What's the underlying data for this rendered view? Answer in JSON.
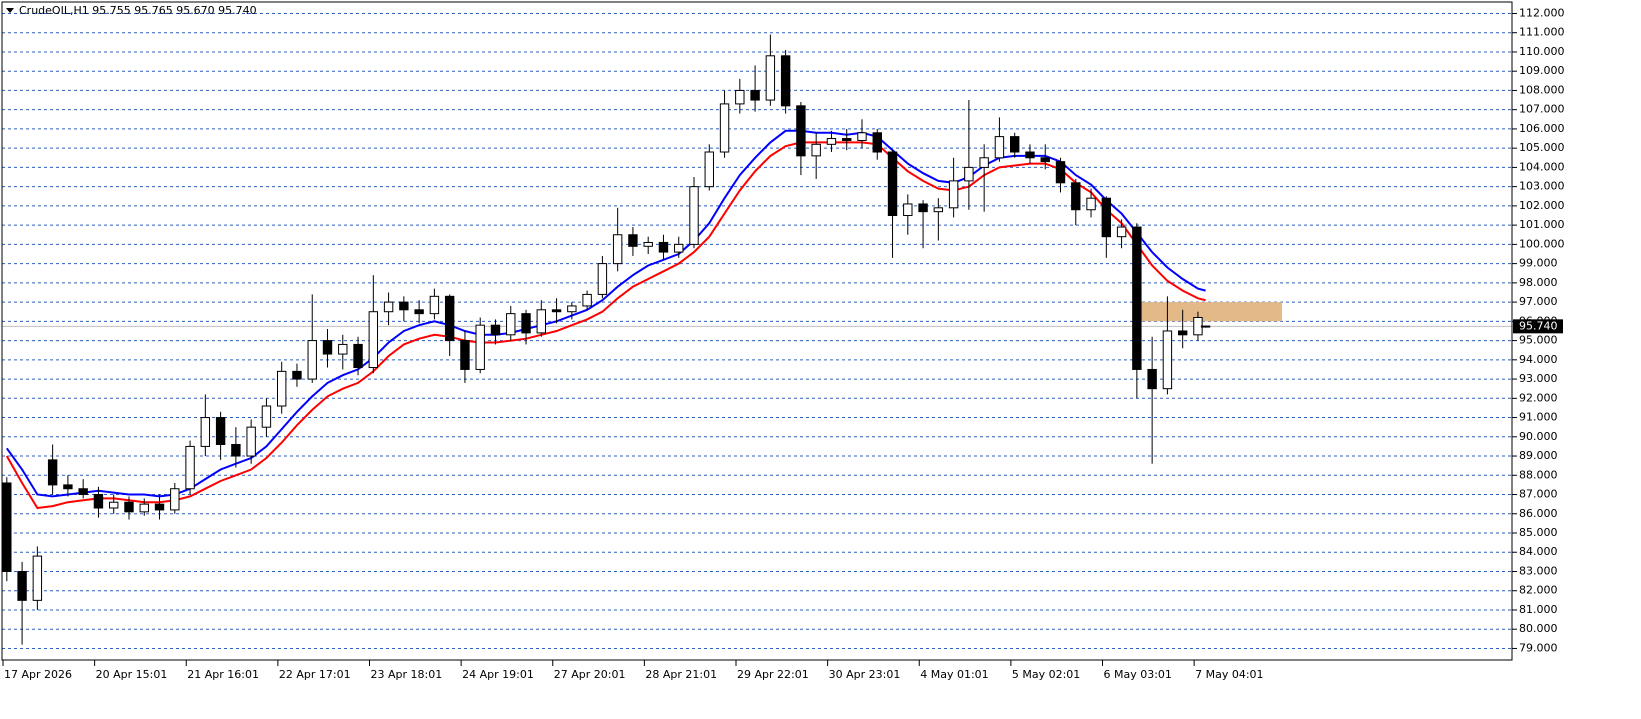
{
  "chart_data": {
    "type": "candlestick",
    "title": "CrudeOIL,H1  95.755 95.765 95.670 95.740",
    "xlim": [
      0,
      395
    ],
    "ylim": [
      78.4,
      112.7
    ],
    "xticks": [
      {
        "value": 0,
        "label": "17 Apr 2026"
      },
      {
        "value": 24,
        "label": "20 Apr 15:01"
      },
      {
        "value": 48,
        "label": "21 Apr 16:01"
      },
      {
        "value": 72,
        "label": "22 Apr 17:01"
      },
      {
        "value": 96,
        "label": "23 Apr 18:01"
      },
      {
        "value": 120,
        "label": "24 Apr 19:01"
      },
      {
        "value": 144,
        "label": "27 Apr 20:01"
      },
      {
        "value": 168,
        "label": "28 Apr 21:01"
      },
      {
        "value": 192,
        "label": "29 Apr 22:01"
      },
      {
        "value": 216,
        "label": "30 Apr 23:01"
      },
      {
        "value": 240,
        "label": "4 May 01:01"
      },
      {
        "value": 264,
        "label": "5 May 02:01"
      },
      {
        "value": 288,
        "label": "6 May 03:01"
      },
      {
        "value": 312,
        "label": "7 May 04:01"
      }
    ],
    "yticks": [
      {
        "value": 112,
        "label": "112.000"
      },
      {
        "value": 111,
        "label": "111.000"
      },
      {
        "value": 110,
        "label": "110.000"
      },
      {
        "value": 109,
        "label": "109.000"
      },
      {
        "value": 108,
        "label": "108.000"
      },
      {
        "value": 107,
        "label": "107.000"
      },
      {
        "value": 106,
        "label": "106.000"
      },
      {
        "value": 105,
        "label": "105.000"
      },
      {
        "value": 104,
        "label": "104.000"
      },
      {
        "value": 103,
        "label": "103.000"
      },
      {
        "value": 102,
        "label": "102.000"
      },
      {
        "value": 101,
        "label": "101.000"
      },
      {
        "value": 100,
        "label": "100.000"
      },
      {
        "value": 99,
        "label": "99.000"
      },
      {
        "value": 98,
        "label": "98.000"
      },
      {
        "value": 97,
        "label": "97.000"
      },
      {
        "value": 96,
        "label": "96.000"
      },
      {
        "value": 95,
        "label": "95.000"
      },
      {
        "value": 94,
        "label": "94.000"
      },
      {
        "value": 93,
        "label": "93.000"
      },
      {
        "value": 92,
        "label": "92.000"
      },
      {
        "value": 91,
        "label": "91.000"
      },
      {
        "value": 90,
        "label": "90.000"
      },
      {
        "value": 89,
        "label": "89.000"
      },
      {
        "value": 88,
        "label": "88.000"
      },
      {
        "value": 87,
        "label": "87.000"
      },
      {
        "value": 86,
        "label": "86.000"
      },
      {
        "value": 85,
        "label": "85.000"
      },
      {
        "value": 84,
        "label": "84.000"
      },
      {
        "value": 83,
        "label": "83.000"
      },
      {
        "value": 82,
        "label": "82.000"
      },
      {
        "value": 81,
        "label": "81.000"
      },
      {
        "value": 80,
        "label": "80.000"
      },
      {
        "value": 79,
        "label": "79.000"
      }
    ],
    "grid": true,
    "grid_color": "#2b5fc4",
    "current_price": {
      "value": 95.74,
      "label": "95.740"
    },
    "zone": {
      "x": [
        297,
        335
      ],
      "y": [
        96,
        97
      ],
      "color": "#e3b988"
    },
    "x": [
      1,
      5,
      9,
      13,
      17,
      21,
      25,
      29,
      33,
      37,
      41,
      45,
      49,
      53,
      57,
      61,
      65,
      69,
      73,
      77,
      81,
      85,
      89,
      93,
      97,
      101,
      105,
      109,
      113,
      117,
      121,
      125,
      129,
      133,
      137,
      141,
      145,
      149,
      153,
      157,
      161,
      165,
      169,
      173,
      177,
      181,
      185,
      189,
      193,
      197,
      201,
      205,
      209,
      213,
      217,
      221,
      225,
      229,
      233,
      237,
      241,
      245,
      249,
      253,
      257,
      261,
      265,
      269,
      273,
      277,
      281,
      285,
      289,
      293,
      297,
      301,
      305,
      309,
      313,
      315
    ],
    "open": [
      87.6,
      83.0,
      81.5,
      88.8,
      87.5,
      87.3,
      87.0,
      86.3,
      86.6,
      86.1,
      86.5,
      86.2,
      87.3,
      89.5,
      91.0,
      89.6,
      89.0,
      90.5,
      91.6,
      93.4,
      93.0,
      95.0,
      94.3,
      94.8,
      93.6,
      96.5,
      97.0,
      96.6,
      96.4,
      97.3,
      95.0,
      93.5,
      95.8,
      95.3,
      96.4,
      95.4,
      96.6,
      96.5,
      96.8,
      97.4,
      99.0,
      100.5,
      99.9,
      100.1,
      99.6,
      100.0,
      103.0,
      104.8,
      107.3,
      108.0,
      107.5,
      109.8,
      107.2,
      104.6,
      105.2,
      105.5,
      105.4,
      105.8,
      104.8,
      101.5,
      102.1,
      101.7,
      101.9,
      103.3,
      104.0,
      104.5,
      105.6,
      104.8,
      104.5,
      104.3,
      103.2,
      101.8,
      102.4,
      100.4,
      100.9,
      93.5,
      92.5,
      95.5,
      95.3,
      95.755
    ],
    "high": [
      87.9,
      83.5,
      84.3,
      89.6,
      88.0,
      87.8,
      87.4,
      87.0,
      86.9,
      86.8,
      87.0,
      87.6,
      89.8,
      92.2,
      91.3,
      90.5,
      90.9,
      92.0,
      93.9,
      93.8,
      97.4,
      95.6,
      95.3,
      95.2,
      98.4,
      97.5,
      97.3,
      97.1,
      97.7,
      97.4,
      95.5,
      96.2,
      96.1,
      96.8,
      96.6,
      97.1,
      97.2,
      97.0,
      97.6,
      99.4,
      101.9,
      100.9,
      100.4,
      100.5,
      100.4,
      103.5,
      105.2,
      108.0,
      108.6,
      109.3,
      110.9,
      110.1,
      107.4,
      105.8,
      105.9,
      106.0,
      106.5,
      106.0,
      104.9,
      102.6,
      102.3,
      102.4,
      104.5,
      107.5,
      105.2,
      106.6,
      105.8,
      105.2,
      105.2,
      104.5,
      103.4,
      102.9,
      102.5,
      101.3,
      101.1,
      95.2,
      97.3,
      96.6,
      96.5,
      95.765
    ],
    "low": [
      82.5,
      79.2,
      81.0,
      87.0,
      86.9,
      86.8,
      85.8,
      86.0,
      85.7,
      85.9,
      85.7,
      86.0,
      87.0,
      89.0,
      88.8,
      88.4,
      88.6,
      90.0,
      91.2,
      92.6,
      92.8,
      93.6,
      93.5,
      93.2,
      93.3,
      95.8,
      96.0,
      95.9,
      96.1,
      94.2,
      92.8,
      93.3,
      94.8,
      95.0,
      94.8,
      95.2,
      95.9,
      96.1,
      96.6,
      97.2,
      98.6,
      99.4,
      99.5,
      99.2,
      99.3,
      99.8,
      102.8,
      104.5,
      106.8,
      106.9,
      107.2,
      106.8,
      103.6,
      103.4,
      104.8,
      104.9,
      105.0,
      104.4,
      99.3,
      100.5,
      99.8,
      100.2,
      101.4,
      101.8,
      101.7,
      104.3,
      104.5,
      104.2,
      103.9,
      102.7,
      101.0,
      101.4,
      99.3,
      99.8,
      92.0,
      88.6,
      92.2,
      94.6,
      95.0,
      95.67
    ],
    "close": [
      83.0,
      81.5,
      83.8,
      87.5,
      87.3,
      87.0,
      86.3,
      86.6,
      86.1,
      86.5,
      86.2,
      87.3,
      89.5,
      91.0,
      89.6,
      89.0,
      90.5,
      91.6,
      93.4,
      93.0,
      95.0,
      94.3,
      94.8,
      93.6,
      96.5,
      97.0,
      96.6,
      96.4,
      97.3,
      95.0,
      93.5,
      95.8,
      95.3,
      96.4,
      95.4,
      96.6,
      96.5,
      96.8,
      97.4,
      99.0,
      100.5,
      99.9,
      100.1,
      99.6,
      100.0,
      103.0,
      104.8,
      107.3,
      108.0,
      107.5,
      109.8,
      107.2,
      104.6,
      105.2,
      105.5,
      105.4,
      105.8,
      104.8,
      101.5,
      102.1,
      101.7,
      101.9,
      103.3,
      104.0,
      104.5,
      105.6,
      104.8,
      104.5,
      104.3,
      103.2,
      101.8,
      102.4,
      100.4,
      100.9,
      93.5,
      92.5,
      95.5,
      95.3,
      96.2,
      95.74
    ],
    "series": [
      {
        "color": "#0000ff",
        "values": [
          89.4,
          88.3,
          87.0,
          86.9,
          87.0,
          87.1,
          87.2,
          87.1,
          87.0,
          87.0,
          86.9,
          87.0,
          87.3,
          87.8,
          88.3,
          88.6,
          88.9,
          89.5,
          90.4,
          91.3,
          92.1,
          92.8,
          93.2,
          93.5,
          94.1,
          94.9,
          95.5,
          95.8,
          96.0,
          95.8,
          95.5,
          95.3,
          95.3,
          95.4,
          95.6,
          95.8,
          96.0,
          96.3,
          96.6,
          97.1,
          97.8,
          98.4,
          98.9,
          99.2,
          99.5,
          100.2,
          101.1,
          102.4,
          103.6,
          104.5,
          105.3,
          105.9,
          105.9,
          105.8,
          105.8,
          105.7,
          105.8,
          105.6,
          104.9,
          104.2,
          103.7,
          103.3,
          103.2,
          103.5,
          104.1,
          104.5,
          104.6,
          104.6,
          104.6,
          104.3,
          103.6,
          103.1,
          102.3,
          101.6,
          100.6,
          99.6,
          98.8,
          98.2,
          97.7,
          97.6
        ]
      },
      {
        "color": "#ff0000",
        "values": [
          89.0,
          87.6,
          86.3,
          86.4,
          86.6,
          86.7,
          86.8,
          86.8,
          86.7,
          86.6,
          86.6,
          86.7,
          86.9,
          87.3,
          87.7,
          88.0,
          88.3,
          88.9,
          89.7,
          90.6,
          91.4,
          92.1,
          92.5,
          92.8,
          93.4,
          94.2,
          94.8,
          95.1,
          95.3,
          95.2,
          95.0,
          94.9,
          94.9,
          95.0,
          95.1,
          95.3,
          95.5,
          95.8,
          96.1,
          96.5,
          97.2,
          97.8,
          98.2,
          98.6,
          99.0,
          99.6,
          100.4,
          101.6,
          102.8,
          103.8,
          104.6,
          105.1,
          105.3,
          105.3,
          105.3,
          105.3,
          105.3,
          105.2,
          104.5,
          103.8,
          103.3,
          102.9,
          102.8,
          103.0,
          103.6,
          104.0,
          104.1,
          104.2,
          104.2,
          103.9,
          103.2,
          102.7,
          101.8,
          101.1,
          100.0,
          98.9,
          98.1,
          97.6,
          97.2,
          97.1
        ]
      }
    ]
  }
}
